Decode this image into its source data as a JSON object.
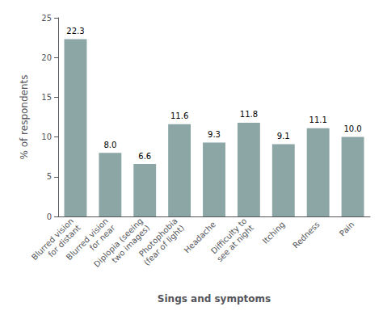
{
  "chart_data": {
    "type": "bar",
    "categories": [
      "Blurred vision\nfor distant",
      "Blurred vision\nfor near",
      "Diplopia (seeing\ntwo images)",
      "Photophobia\n(fear of light)",
      "Headache",
      "Difficulty to\nsee at night",
      "Itching",
      "Redness",
      "Pain"
    ],
    "values": [
      22.3,
      8.0,
      6.6,
      11.6,
      9.3,
      11.8,
      9.1,
      11.1,
      10.0
    ],
    "value_labels": [
      "22.3",
      "8.0",
      "6.6",
      "11.6",
      "9.3",
      "11.8",
      "9.1",
      "11.1",
      "10.0"
    ],
    "data_labels": true,
    "color": "#8ca5a5",
    "xlabel": "Sings and symptoms",
    "ylabel": "% of respondents",
    "ylim": [
      0,
      25
    ],
    "yticks": [
      0,
      5,
      10,
      15,
      20,
      25
    ],
    "grid": false
  }
}
